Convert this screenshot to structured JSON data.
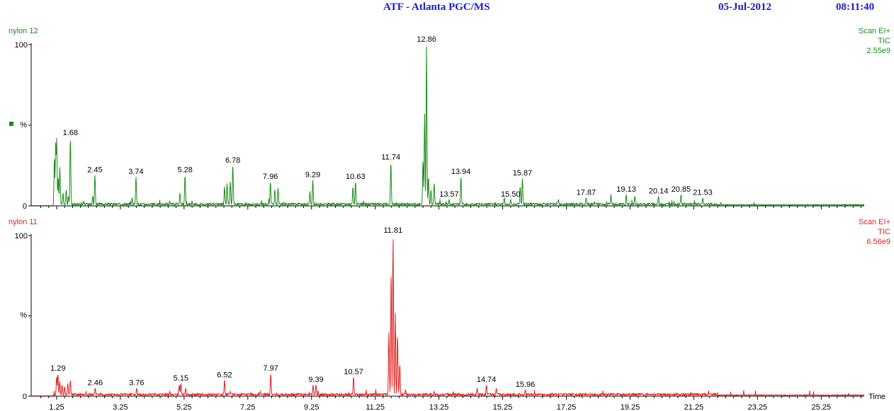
{
  "header": {
    "title": "ATF - Atlanta PGC/MS",
    "date": "05-Jul-2012",
    "time": "08:11:40"
  },
  "colors": {
    "header": "#1a1ad2",
    "top_trace": "#1a8c1a",
    "bottom_trace": "#e41d1d",
    "axis": "#000000"
  },
  "chart_data": [
    {
      "type": "line",
      "name": "nylon 12",
      "scan_label": "Scan EI+",
      "mode_label": "TIC",
      "intensity_label": "2.55e9",
      "ylabel": "%",
      "ylim": [
        0,
        100
      ],
      "ytick_labels": [
        "100",
        "0"
      ],
      "xlim": [
        0.45,
        26.6
      ],
      "peaks": [
        {
          "x": 1.18,
          "y": 30
        },
        {
          "x": 1.22,
          "y": 40
        },
        {
          "x": 1.25,
          "y": 42
        },
        {
          "x": 1.3,
          "y": 18
        },
        {
          "x": 1.35,
          "y": 24
        },
        {
          "x": 1.45,
          "y": 8
        },
        {
          "x": 1.55,
          "y": 10
        },
        {
          "x": 1.62,
          "y": 6
        },
        {
          "x": 1.68,
          "y": 42
        },
        {
          "x": 2.1,
          "y": 3
        },
        {
          "x": 2.38,
          "y": 6
        },
        {
          "x": 2.45,
          "y": 19
        },
        {
          "x": 3.62,
          "y": 5
        },
        {
          "x": 3.74,
          "y": 18
        },
        {
          "x": 4.8,
          "y": 3
        },
        {
          "x": 5.12,
          "y": 8
        },
        {
          "x": 5.28,
          "y": 19
        },
        {
          "x": 5.5,
          "y": 3
        },
        {
          "x": 6.52,
          "y": 12
        },
        {
          "x": 6.6,
          "y": 14
        },
        {
          "x": 6.7,
          "y": 15
        },
        {
          "x": 6.78,
          "y": 25
        },
        {
          "x": 7.96,
          "y": 15
        },
        {
          "x": 8.1,
          "y": 10
        },
        {
          "x": 8.2,
          "y": 11
        },
        {
          "x": 9.2,
          "y": 9
        },
        {
          "x": 9.29,
          "y": 16
        },
        {
          "x": 10.55,
          "y": 12
        },
        {
          "x": 10.63,
          "y": 15
        },
        {
          "x": 11.74,
          "y": 27
        },
        {
          "x": 12.75,
          "y": 28
        },
        {
          "x": 12.8,
          "y": 58
        },
        {
          "x": 12.86,
          "y": 100
        },
        {
          "x": 12.92,
          "y": 18
        },
        {
          "x": 13.0,
          "y": 10
        },
        {
          "x": 13.1,
          "y": 14
        },
        {
          "x": 13.57,
          "y": 4
        },
        {
          "x": 13.94,
          "y": 18
        },
        {
          "x": 15.3,
          "y": 5
        },
        {
          "x": 15.5,
          "y": 4
        },
        {
          "x": 15.8,
          "y": 12
        },
        {
          "x": 15.87,
          "y": 17
        },
        {
          "x": 17.0,
          "y": 4
        },
        {
          "x": 17.87,
          "y": 5
        },
        {
          "x": 18.65,
          "y": 7
        },
        {
          "x": 19.13,
          "y": 7
        },
        {
          "x": 19.4,
          "y": 6
        },
        {
          "x": 20.14,
          "y": 6
        },
        {
          "x": 20.85,
          "y": 7
        },
        {
          "x": 21.53,
          "y": 5
        },
        {
          "x": 22.1,
          "y": 2
        }
      ],
      "labels": [
        {
          "x": 1.68,
          "y": 42,
          "text": "1.68"
        },
        {
          "x": 2.45,
          "y": 19,
          "text": "2.45"
        },
        {
          "x": 3.74,
          "y": 18,
          "text": "3.74"
        },
        {
          "x": 5.28,
          "y": 19,
          "text": "5.28"
        },
        {
          "x": 6.78,
          "y": 25,
          "text": "6.78"
        },
        {
          "x": 7.96,
          "y": 15,
          "text": "7.96"
        },
        {
          "x": 9.29,
          "y": 16,
          "text": "9.29"
        },
        {
          "x": 10.63,
          "y": 15,
          "text": "10.63"
        },
        {
          "x": 11.74,
          "y": 27,
          "text": "11.74"
        },
        {
          "x": 12.86,
          "y": 100,
          "text": "12.86"
        },
        {
          "x": 13.57,
          "y": 4,
          "text": "13.57"
        },
        {
          "x": 13.94,
          "y": 18,
          "text": "13.94"
        },
        {
          "x": 15.5,
          "y": 4,
          "text": "15.50"
        },
        {
          "x": 15.87,
          "y": 17,
          "text": "15.87"
        },
        {
          "x": 17.87,
          "y": 5,
          "text": "17.87"
        },
        {
          "x": 19.13,
          "y": 7,
          "text": "19.13"
        },
        {
          "x": 20.14,
          "y": 6,
          "text": "20.14"
        },
        {
          "x": 20.85,
          "y": 7,
          "text": "20.85"
        },
        {
          "x": 21.53,
          "y": 5,
          "text": "21.53"
        }
      ]
    },
    {
      "type": "line",
      "name": "nylon 11",
      "scan_label": "Scan EI+",
      "mode_label": "TIC",
      "intensity_label": "6.56e9",
      "ylabel": "%",
      "ylim": [
        0,
        100
      ],
      "ytick_labels": [
        "100",
        "0"
      ],
      "xlabel": "Time",
      "xlim": [
        0.45,
        26.6
      ],
      "xticks": [
        "1.25",
        "3.25",
        "5.25",
        "7.25",
        "9.25",
        "11.25",
        "13.25",
        "15.25",
        "17.25",
        "19.25",
        "21.25",
        "23.25",
        "25.25"
      ],
      "peaks": [
        {
          "x": 1.25,
          "y": 12
        },
        {
          "x": 1.29,
          "y": 14
        },
        {
          "x": 1.35,
          "y": 9
        },
        {
          "x": 1.42,
          "y": 7
        },
        {
          "x": 1.5,
          "y": 6
        },
        {
          "x": 1.6,
          "y": 8
        },
        {
          "x": 1.68,
          "y": 10
        },
        {
          "x": 2.46,
          "y": 5
        },
        {
          "x": 3.76,
          "y": 5
        },
        {
          "x": 4.8,
          "y": 3
        },
        {
          "x": 5.1,
          "y": 7
        },
        {
          "x": 5.15,
          "y": 8
        },
        {
          "x": 5.3,
          "y": 5
        },
        {
          "x": 6.52,
          "y": 10
        },
        {
          "x": 6.7,
          "y": 3
        },
        {
          "x": 7.97,
          "y": 14
        },
        {
          "x": 9.3,
          "y": 7
        },
        {
          "x": 9.39,
          "y": 7
        },
        {
          "x": 10.57,
          "y": 12
        },
        {
          "x": 11.68,
          "y": 40
        },
        {
          "x": 11.75,
          "y": 78
        },
        {
          "x": 11.81,
          "y": 100
        },
        {
          "x": 11.88,
          "y": 52
        },
        {
          "x": 11.95,
          "y": 38
        },
        {
          "x": 12.02,
          "y": 20
        },
        {
          "x": 12.2,
          "y": 4
        },
        {
          "x": 13.1,
          "y": 3
        },
        {
          "x": 14.45,
          "y": 5
        },
        {
          "x": 14.74,
          "y": 7
        },
        {
          "x": 15.05,
          "y": 5
        },
        {
          "x": 15.96,
          "y": 4
        },
        {
          "x": 16.8,
          "y": 2
        },
        {
          "x": 23.0,
          "y": 1
        }
      ],
      "labels": [
        {
          "x": 1.29,
          "y": 14,
          "text": "1.29"
        },
        {
          "x": 2.46,
          "y": 5,
          "text": "2.46"
        },
        {
          "x": 3.76,
          "y": 5,
          "text": "3.76"
        },
        {
          "x": 5.15,
          "y": 8,
          "text": "5.15"
        },
        {
          "x": 6.52,
          "y": 10,
          "text": "6.52"
        },
        {
          "x": 7.97,
          "y": 14,
          "text": "7.97"
        },
        {
          "x": 9.39,
          "y": 7,
          "text": "9.39"
        },
        {
          "x": 10.57,
          "y": 12,
          "text": "10.57"
        },
        {
          "x": 11.81,
          "y": 100,
          "text": "11.81"
        },
        {
          "x": 14.74,
          "y": 7,
          "text": "14.74"
        },
        {
          "x": 15.96,
          "y": 4,
          "text": "15.96"
        }
      ]
    }
  ]
}
